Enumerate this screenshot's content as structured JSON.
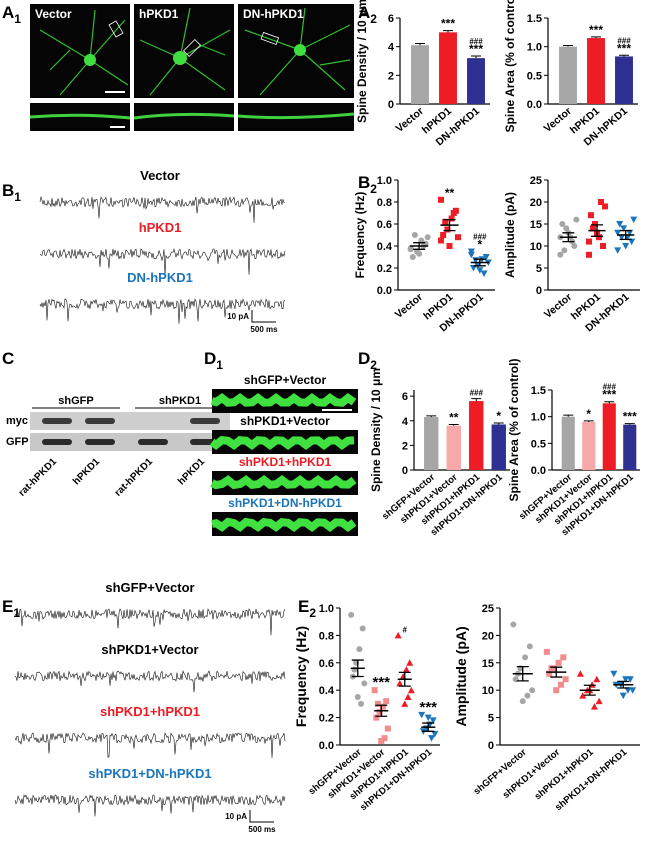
{
  "panels": [
    {
      "label": "A",
      "sub": "1"
    },
    {
      "label": "A",
      "sub": "2"
    },
    {
      "label": "B",
      "sub": "1"
    },
    {
      "label": "B",
      "sub": "2"
    },
    {
      "label": "C"
    },
    {
      "label": "D",
      "sub": "1"
    },
    {
      "label": "D",
      "sub": "2"
    },
    {
      "label": "E",
      "sub": "1"
    },
    {
      "label": "E",
      "sub": "2"
    }
  ],
  "images": {
    "A1": [
      "Vector",
      "hPKD1",
      "DN-hPKD1"
    ],
    "D1": {
      "labels": [
        "shGFP+Vector",
        "shPKD1+Vector",
        "shPKD1+hPKD1",
        "shPKD1+DN-hPKD1"
      ],
      "label_colors": [
        "#000000",
        "#000000",
        "#ee1c24",
        "#1b75bb"
      ]
    }
  },
  "traces": {
    "B1": {
      "labels": [
        "Vector",
        "hPKD1",
        "DN-hPKD1"
      ],
      "label_colors": [
        "#000000",
        "#ee1c24",
        "#1b75bb"
      ],
      "scale": [
        "10 pA",
        "500 ms"
      ]
    },
    "E1": {
      "labels": [
        "shGFP+Vector",
        "shPKD1+Vector",
        "shPKD1+hPKD1",
        "shPKD1+DN-hPKD1"
      ],
      "label_colors": [
        "#000000",
        "#000000",
        "#ee1c24",
        "#1b75bb"
      ],
      "scale": [
        "10 pA",
        "500 ms"
      ]
    }
  },
  "blot": {
    "groups": [
      "shGFP",
      "shPKD1"
    ],
    "rows": [
      "myc",
      "GFP"
    ],
    "lanes": [
      "rat-hPKD1",
      "hPKD1",
      "rat-hPKD1",
      "hPKD1"
    ]
  },
  "chart_data": [
    {
      "type": "bar",
      "ylabel": "Spine Density / 10 μm",
      "categories": [
        "Vector",
        "hPKD1",
        "DN-hPKD1"
      ],
      "values": [
        4.1,
        5.0,
        3.2
      ],
      "errors": [
        0.12,
        0.12,
        0.15
      ],
      "colors": [
        "#a6a6a6",
        "#ee1c24",
        "#2e3192"
      ],
      "ylim": [
        0,
        6
      ],
      "yticks": [
        0,
        2,
        4,
        6
      ],
      "annotations": [
        null,
        [
          "***"
        ],
        [
          "###",
          "***"
        ]
      ]
    },
    {
      "type": "bar",
      "ylabel": "Spine Area (% of control)",
      "categories": [
        "Vector",
        "hPKD1",
        "DN-hPKD1"
      ],
      "values": [
        1.0,
        1.15,
        0.83
      ],
      "errors": [
        0.02,
        0.02,
        0.02
      ],
      "colors": [
        "#a6a6a6",
        "#ee1c24",
        "#2e3192"
      ],
      "ylim": [
        0,
        1.5
      ],
      "yticks": [
        {
          "value": 0,
          "label": "0.0"
        },
        {
          "value": 0.5,
          "label": "0.5"
        },
        {
          "value": 1,
          "label": "1.0"
        },
        {
          "value": 1.5,
          "label": "1.5"
        }
      ],
      "annotations": [
        null,
        [
          "***"
        ],
        [
          "###",
          "***"
        ]
      ]
    },
    {
      "type": "scatter",
      "ylabel": "Frequency (Hz)",
      "categories": [
        "Vector",
        "hPKD1",
        "DN-hPKD1"
      ],
      "values": [
        0.4,
        0.59,
        0.25
      ],
      "errors": [
        0.03,
        0.05,
        0.03
      ],
      "colors": [
        "#a6a6a6",
        "#ee1c24",
        "#1b75bb"
      ],
      "markers": [
        "circle",
        "square",
        "triangle-down"
      ],
      "points": [
        [
          0.38,
          0.42,
          0.45,
          0.35,
          0.3,
          0.48,
          0.4,
          0.33,
          0.5,
          0.37
        ],
        [
          0.82,
          0.72,
          0.65,
          0.55,
          0.5,
          0.48,
          0.7,
          0.4,
          0.62,
          0.45
        ],
        [
          0.35,
          0.3,
          0.28,
          0.22,
          0.2,
          0.25,
          0.15,
          0.18,
          0.27,
          0.32
        ]
      ],
      "ylim": [
        0,
        1
      ],
      "yticks": [
        {
          "value": 0,
          "label": "0.0"
        },
        {
          "value": 0.2,
          "label": "0.2"
        },
        {
          "value": 0.4,
          "label": "0.4"
        },
        {
          "value": 0.6,
          "label": "0.6"
        },
        {
          "value": 0.8,
          "label": "0.8"
        },
        {
          "value": 1,
          "label": "1.0"
        }
      ],
      "annotations": [
        null,
        [
          "**"
        ],
        [
          "###",
          "*"
        ]
      ]
    },
    {
      "type": "scatter",
      "ylabel": "Amplitude (pA)",
      "categories": [
        "Vector",
        "hPKD1",
        "DN-hPKD1"
      ],
      "values": [
        12,
        13.5,
        12.5
      ],
      "errors": [
        1,
        1.3,
        1
      ],
      "colors": [
        "#a6a6a6",
        "#ee1c24",
        "#1b75bb"
      ],
      "markers": [
        "circle",
        "square",
        "triangle-down"
      ],
      "points": [
        [
          8,
          10,
          12,
          14,
          15,
          16,
          11,
          13,
          9,
          12
        ],
        [
          8,
          10,
          12,
          15,
          17,
          19,
          20,
          13,
          14,
          11
        ],
        [
          9,
          11,
          12,
          14,
          15,
          16,
          13,
          10,
          12,
          13
        ]
      ],
      "ylim": [
        0,
        25
      ],
      "yticks": [
        0,
        5,
        10,
        15,
        20,
        25
      ]
    },
    {
      "type": "bar",
      "ylabel": "Spine Density / 10 μm",
      "categories": [
        "shGFP+Vector",
        "shPKD1+Vector",
        "shPKD1+hPKD1",
        "shPKD1+DN-hPKD1"
      ],
      "values": [
        4.3,
        3.6,
        5.6,
        3.7
      ],
      "errors": [
        0.1,
        0.1,
        0.2,
        0.12
      ],
      "colors": [
        "#a6a6a6",
        "#f7a8a8",
        "#ee1c24",
        "#2e3192"
      ],
      "ylim": [
        0,
        6.5
      ],
      "yticks": [
        0,
        2,
        4,
        6
      ],
      "annotations": [
        null,
        [
          "**"
        ],
        [
          "###"
        ],
        [
          "*"
        ]
      ]
    },
    {
      "type": "bar",
      "ylabel": "Spine Area (% of control)",
      "categories": [
        "shGFP+Vector",
        "shPKD1+Vector",
        "shPKD1+hPKD1",
        "shPKD1+DN-hPKD1"
      ],
      "values": [
        1.0,
        0.9,
        1.25,
        0.85
      ],
      "errors": [
        0.03,
        0.02,
        0.03,
        0.02
      ],
      "colors": [
        "#a6a6a6",
        "#f7a8a8",
        "#ee1c24",
        "#2e3192"
      ],
      "ylim": [
        0,
        1.5
      ],
      "yticks": [
        {
          "value": 0,
          "label": "0.0"
        },
        {
          "value": 0.5,
          "label": "0.5"
        },
        {
          "value": 1,
          "label": "1.0"
        },
        {
          "value": 1.5,
          "label": "1.5"
        }
      ],
      "annotations": [
        null,
        [
          "*"
        ],
        [
          "###",
          "***"
        ],
        [
          "***"
        ]
      ]
    },
    {
      "type": "scatter",
      "ylabel": "Frequency (Hz)",
      "categories": [
        "shGFP+Vector",
        "shPKD1+Vector",
        "shPKD1+hPKD1",
        "shPKD1+DN-hPKD1"
      ],
      "values": [
        0.56,
        0.25,
        0.48,
        0.13
      ],
      "errors": [
        0.06,
        0.04,
        0.05,
        0.03
      ],
      "colors": [
        "#a6a6a6",
        "#f08c8c",
        "#ee1c24",
        "#1b75bb"
      ],
      "markers": [
        "circle",
        "square",
        "triangle-up",
        "triangle-down"
      ],
      "points": [
        [
          0.95,
          0.85,
          0.7,
          0.6,
          0.5,
          0.45,
          0.3,
          0.35,
          0.55
        ],
        [
          0.4,
          0.32,
          0.28,
          0.24,
          0.2,
          0.12,
          0.05,
          0.03,
          0.3
        ],
        [
          0.8,
          0.6,
          0.55,
          0.5,
          0.45,
          0.4,
          0.35,
          0.3
        ],
        [
          0.22,
          0.18,
          0.15,
          0.12,
          0.1,
          0.08,
          0.05,
          0.2
        ]
      ],
      "ylim": [
        0,
        1
      ],
      "yticks": [
        {
          "value": 0,
          "label": "0.0"
        },
        {
          "value": 0.2,
          "label": "0.2"
        },
        {
          "value": 0.4,
          "label": "0.4"
        },
        {
          "value": 0.6,
          "label": "0.6"
        },
        {
          "value": 0.8,
          "label": "0.8"
        },
        {
          "value": 1,
          "label": "1.0"
        }
      ],
      "annotations": [
        null,
        [
          "***"
        ],
        [
          "#"
        ],
        [
          "***"
        ]
      ]
    },
    {
      "type": "scatter",
      "ylabel": "Amplitude (pA)",
      "categories": [
        "shGFP+Vector",
        "shPKD1+Vector",
        "shPKD1+hPKD1",
        "shPKD1+DN-hPKD1"
      ],
      "values": [
        13,
        13.3,
        10,
        11
      ],
      "errors": [
        1.3,
        0.9,
        0.9,
        0.6
      ],
      "colors": [
        "#a6a6a6",
        "#f08c8c",
        "#ee1c24",
        "#1b75bb"
      ],
      "markers": [
        "circle",
        "square",
        "triangle-up",
        "triangle-down"
      ],
      "points": [
        [
          22,
          18,
          16,
          14,
          12,
          10,
          9,
          8,
          13
        ],
        [
          17,
          16,
          15,
          14,
          13,
          12,
          11,
          10,
          14
        ],
        [
          13,
          12,
          11,
          10,
          9,
          8,
          7,
          10
        ],
        [
          13,
          12,
          12,
          11,
          11,
          10,
          10,
          9
        ]
      ],
      "ylim": [
        0,
        25
      ],
      "yticks": [
        0,
        5,
        10,
        15,
        20,
        25
      ]
    }
  ]
}
